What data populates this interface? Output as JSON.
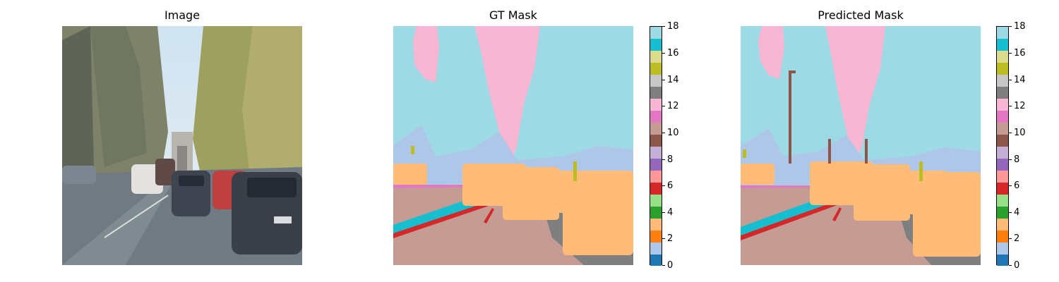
{
  "panels": {
    "image_title": "Image",
    "gt_title": "GT Mask",
    "pred_title": "Predicted Mask"
  },
  "colorbar": {
    "min": 0,
    "max": 18,
    "ticks": [
      "0",
      "2",
      "4",
      "6",
      "8",
      "10",
      "12",
      "14",
      "16",
      "18"
    ],
    "colors": [
      "#1f77b4",
      "#aec7e8",
      "#ff7f0e",
      "#ffbb78",
      "#2ca02c",
      "#98df8a",
      "#d62728",
      "#ff9896",
      "#9467bd",
      "#c5b0d5",
      "#8c564b",
      "#c49c94",
      "#e377c2",
      "#f7b6d2",
      "#7f7f7f",
      "#c7c7c7",
      "#bcbd22",
      "#dbdb8d",
      "#17becf",
      "#9edae5"
    ]
  },
  "mask_colors": {
    "sky": "#9edae5",
    "vegetation": "#f7b6d2",
    "road": "#c49c94",
    "car": "#ffbb78",
    "sidewalk": "#17becf",
    "lane": "#d62728",
    "terrain": "#7f7f7f",
    "building": "#aec7e8",
    "pole": "#8c564b",
    "sign": "#bcbd22",
    "barrier": "#e377c2"
  }
}
